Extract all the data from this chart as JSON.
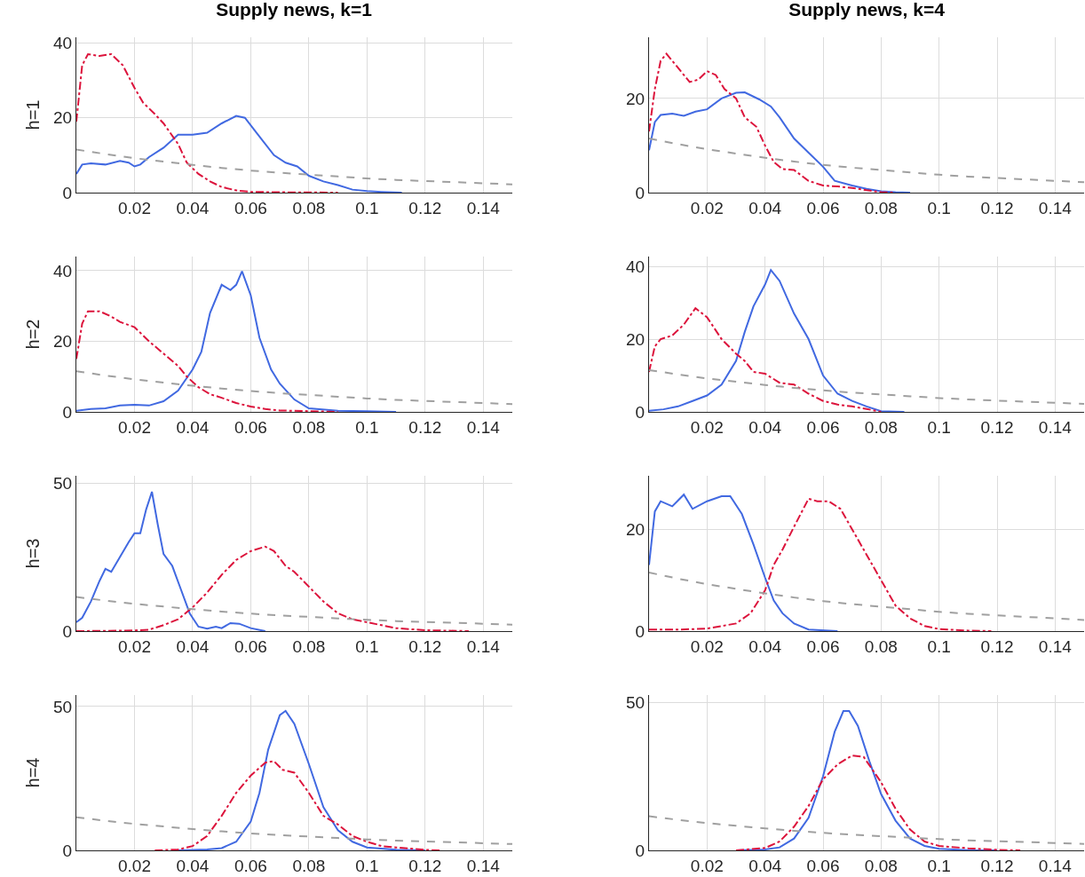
{
  "chart_data": [
    {
      "type": "line",
      "title": "Supply news, k=1",
      "ylabel": "h=1",
      "xlim": [
        0,
        0.15
      ],
      "xticks": [
        0.02,
        0.04,
        0.06,
        0.08,
        0.1,
        0.12,
        0.14
      ],
      "ylim": [
        0,
        41.5
      ],
      "yticks": [
        0,
        20,
        40
      ],
      "grid": true,
      "series": [
        {
          "color": "#4169e1",
          "line_style": "solid",
          "x": [
            0,
            0.002,
            0.005,
            0.01,
            0.015,
            0.018,
            0.02,
            0.022,
            0.025,
            0.03,
            0.035,
            0.04,
            0.045,
            0.05,
            0.055,
            0.058,
            0.062,
            0.068,
            0.072,
            0.076,
            0.08,
            0.085,
            0.09,
            0.095,
            0.1,
            0.105,
            0.112
          ],
          "values": [
            5,
            7.5,
            7.8,
            7.5,
            8.5,
            8,
            7,
            7.5,
            9.5,
            12,
            15.5,
            15.5,
            16,
            18.5,
            20.5,
            20,
            16,
            10,
            8,
            7,
            4.5,
            3,
            2,
            0.8,
            0.4,
            0.2,
            0
          ]
        },
        {
          "color": "#dc143c",
          "line_style": "dashdot",
          "x": [
            0,
            0.002,
            0.004,
            0.008,
            0.012,
            0.016,
            0.02,
            0.023,
            0.027,
            0.03,
            0.035,
            0.038,
            0.042,
            0.046,
            0.05,
            0.055,
            0.06,
            0.07,
            0.08,
            0.09
          ],
          "values": [
            19,
            34,
            37,
            36.5,
            37,
            34,
            28,
            24,
            21,
            18.5,
            13,
            8,
            5,
            3,
            1.5,
            0.6,
            0.2,
            0.1,
            0.05,
            0
          ]
        },
        {
          "color": "#a0a0a0",
          "line_style": "dashed",
          "x": [
            0,
            0.01,
            0.02,
            0.03,
            0.04,
            0.05,
            0.06,
            0.07,
            0.08,
            0.09,
            0.1,
            0.11,
            0.12,
            0.13,
            0.14,
            0.15
          ],
          "values": [
            11.5,
            10.3,
            9.2,
            8.3,
            7.4,
            6.6,
            5.9,
            5.3,
            4.8,
            4.3,
            3.8,
            3.4,
            3.1,
            2.8,
            2.5,
            2.2
          ]
        }
      ]
    },
    {
      "type": "line",
      "title": "Supply news, k=4",
      "xlim": [
        0,
        0.15
      ],
      "xticks": [
        0.02,
        0.04,
        0.06,
        0.08,
        0.1,
        0.12,
        0.14
      ],
      "ylim": [
        0,
        33
      ],
      "yticks": [
        0,
        20
      ],
      "grid": true,
      "series": [
        {
          "color": "#4169e1",
          "line_style": "solid",
          "x": [
            0,
            0.002,
            0.004,
            0.008,
            0.012,
            0.016,
            0.02,
            0.025,
            0.03,
            0.033,
            0.038,
            0.042,
            0.045,
            0.05,
            0.055,
            0.06,
            0.064,
            0.07,
            0.075,
            0.08,
            0.085,
            0.09
          ],
          "values": [
            9,
            15,
            16.5,
            16.8,
            16.3,
            17.2,
            17.7,
            20,
            21.2,
            21.3,
            19.8,
            18.3,
            16,
            11.5,
            8.5,
            5.5,
            2.5,
            1.5,
            0.8,
            0.3,
            0.1,
            0
          ]
        },
        {
          "color": "#dc143c",
          "line_style": "dashdot",
          "x": [
            0,
            0.002,
            0.004,
            0.006,
            0.01,
            0.014,
            0.017,
            0.02,
            0.023,
            0.026,
            0.03,
            0.033,
            0.037,
            0.04,
            0.043,
            0.046,
            0.05,
            0.055,
            0.06,
            0.065,
            0.07,
            0.075,
            0.08,
            0.085
          ],
          "values": [
            13,
            22,
            28,
            29.5,
            26.5,
            23.5,
            24,
            25.8,
            25,
            22,
            20,
            16,
            14,
            10,
            6.5,
            5,
            4.8,
            2.5,
            1.5,
            1.3,
            1,
            0.5,
            0.1,
            0
          ]
        },
        {
          "color": "#a0a0a0",
          "line_style": "dashed",
          "x": [
            0,
            0.01,
            0.02,
            0.03,
            0.04,
            0.05,
            0.06,
            0.07,
            0.08,
            0.09,
            0.1,
            0.11,
            0.12,
            0.13,
            0.14,
            0.15
          ],
          "values": [
            11.5,
            10.3,
            9.2,
            8.3,
            7.4,
            6.6,
            5.9,
            5.3,
            4.8,
            4.3,
            3.8,
            3.4,
            3.1,
            2.8,
            2.5,
            2.2
          ]
        }
      ]
    },
    {
      "type": "line",
      "ylabel": "h=2",
      "xlim": [
        0,
        0.15
      ],
      "xticks": [
        0.02,
        0.04,
        0.06,
        0.08,
        0.1,
        0.12,
        0.14
      ],
      "ylim": [
        0,
        44
      ],
      "yticks": [
        0,
        20,
        40
      ],
      "grid": true,
      "series": [
        {
          "color": "#4169e1",
          "line_style": "solid",
          "x": [
            0,
            0.005,
            0.01,
            0.015,
            0.02,
            0.025,
            0.03,
            0.035,
            0.04,
            0.043,
            0.046,
            0.05,
            0.053,
            0.055,
            0.057,
            0.06,
            0.063,
            0.067,
            0.07,
            0.075,
            0.08,
            0.09,
            0.1,
            0.11
          ],
          "values": [
            0.3,
            0.8,
            1,
            1.8,
            2,
            1.8,
            3,
            6,
            12,
            17,
            28,
            36,
            34.5,
            36,
            39.8,
            33,
            21,
            12,
            8,
            3.5,
            1,
            0.3,
            0.2,
            0
          ]
        },
        {
          "color": "#dc143c",
          "line_style": "dashdot",
          "x": [
            0,
            0.002,
            0.004,
            0.008,
            0.012,
            0.015,
            0.02,
            0.025,
            0.03,
            0.035,
            0.038,
            0.042,
            0.046,
            0.05,
            0.055,
            0.06,
            0.065,
            0.07,
            0.08,
            0.09
          ],
          "values": [
            15,
            25,
            28.5,
            28.5,
            27,
            25.5,
            24,
            20,
            16.5,
            13,
            10,
            7,
            5,
            4,
            2.5,
            1.5,
            0.8,
            0.4,
            0.2,
            0
          ]
        },
        {
          "color": "#a0a0a0",
          "line_style": "dashed",
          "x": [
            0,
            0.01,
            0.02,
            0.03,
            0.04,
            0.05,
            0.06,
            0.07,
            0.08,
            0.09,
            0.1,
            0.11,
            0.12,
            0.13,
            0.14,
            0.15
          ],
          "values": [
            11.5,
            10.3,
            9.2,
            8.3,
            7.4,
            6.6,
            5.9,
            5.3,
            4.8,
            4.3,
            3.8,
            3.4,
            3.1,
            2.8,
            2.5,
            2.2
          ]
        }
      ]
    },
    {
      "type": "line",
      "xlim": [
        0,
        0.15
      ],
      "xticks": [
        0.02,
        0.04,
        0.06,
        0.08,
        0.1,
        0.12,
        0.14
      ],
      "ylim": [
        0,
        42.7
      ],
      "yticks": [
        0,
        20,
        40
      ],
      "grid": true,
      "series": [
        {
          "color": "#4169e1",
          "line_style": "solid",
          "x": [
            0,
            0.005,
            0.01,
            0.015,
            0.02,
            0.025,
            0.03,
            0.033,
            0.036,
            0.04,
            0.042,
            0.045,
            0.05,
            0.055,
            0.06,
            0.065,
            0.07,
            0.075,
            0.08,
            0.088
          ],
          "values": [
            0.3,
            0.7,
            1.5,
            3,
            4.5,
            7.5,
            14,
            22,
            29,
            35,
            39,
            36,
            27,
            20,
            10,
            5,
            3,
            1.5,
            0.2,
            0
          ]
        },
        {
          "color": "#dc143c",
          "line_style": "dashdot",
          "x": [
            0,
            0.002,
            0.004,
            0.008,
            0.012,
            0.016,
            0.02,
            0.025,
            0.03,
            0.033,
            0.036,
            0.04,
            0.045,
            0.05,
            0.055,
            0.06,
            0.065,
            0.07,
            0.075,
            0.08
          ],
          "values": [
            11,
            18,
            20,
            21,
            24,
            28.5,
            26,
            20,
            16,
            14,
            11,
            10.5,
            8,
            7.5,
            5,
            3,
            2,
            1.5,
            0.8,
            0
          ]
        },
        {
          "color": "#a0a0a0",
          "line_style": "dashed",
          "x": [
            0,
            0.01,
            0.02,
            0.03,
            0.04,
            0.05,
            0.06,
            0.07,
            0.08,
            0.09,
            0.1,
            0.11,
            0.12,
            0.13,
            0.14,
            0.15
          ],
          "values": [
            11.5,
            10.3,
            9.2,
            8.3,
            7.4,
            6.6,
            5.9,
            5.3,
            4.8,
            4.3,
            3.8,
            3.4,
            3.1,
            2.8,
            2.5,
            2.2
          ]
        }
      ]
    },
    {
      "type": "line",
      "ylabel": "h=3",
      "xlim": [
        0,
        0.15
      ],
      "xticks": [
        0.02,
        0.04,
        0.06,
        0.08,
        0.1,
        0.12,
        0.14
      ],
      "ylim": [
        0,
        52.4
      ],
      "yticks": [
        0,
        50
      ],
      "grid": true,
      "series": [
        {
          "color": "#4169e1",
          "line_style": "solid",
          "x": [
            0,
            0.002,
            0.005,
            0.008,
            0.01,
            0.012,
            0.015,
            0.018,
            0.02,
            0.022,
            0.024,
            0.026,
            0.028,
            0.03,
            0.033,
            0.036,
            0.039,
            0.042,
            0.045,
            0.048,
            0.05,
            0.053,
            0.056,
            0.06,
            0.065
          ],
          "values": [
            3,
            4.5,
            10,
            17,
            21,
            20,
            25,
            30,
            33,
            33,
            41,
            47,
            36,
            26,
            22,
            14,
            6,
            1.5,
            0.8,
            1.5,
            1,
            2.7,
            2.5,
            1,
            0
          ]
        },
        {
          "color": "#dc143c",
          "line_style": "dashdot",
          "x": [
            0,
            0.02,
            0.025,
            0.03,
            0.035,
            0.04,
            0.045,
            0.05,
            0.055,
            0.06,
            0.065,
            0.068,
            0.072,
            0.075,
            0.08,
            0.085,
            0.09,
            0.095,
            0.1,
            0.105,
            0.11,
            0.12,
            0.135
          ],
          "values": [
            0,
            0.2,
            0.5,
            2,
            4,
            8,
            13,
            19,
            24,
            27,
            28.5,
            27,
            22,
            20,
            15,
            10,
            6,
            4,
            3,
            2,
            1,
            0.3,
            0
          ]
        },
        {
          "color": "#a0a0a0",
          "line_style": "dashed",
          "x": [
            0,
            0.01,
            0.02,
            0.03,
            0.04,
            0.05,
            0.06,
            0.07,
            0.08,
            0.09,
            0.1,
            0.11,
            0.12,
            0.13,
            0.14,
            0.15
          ],
          "values": [
            11.5,
            10.3,
            9.2,
            8.3,
            7.4,
            6.6,
            5.9,
            5.3,
            4.8,
            4.3,
            3.8,
            3.4,
            3.1,
            2.8,
            2.5,
            2.2
          ]
        }
      ]
    },
    {
      "type": "line",
      "xlim": [
        0,
        0.15
      ],
      "xticks": [
        0.02,
        0.04,
        0.06,
        0.08,
        0.1,
        0.12,
        0.14
      ],
      "ylim": [
        0,
        30.5
      ],
      "yticks": [
        0,
        20
      ],
      "grid": true,
      "series": [
        {
          "color": "#4169e1",
          "line_style": "solid",
          "x": [
            0,
            0.002,
            0.004,
            0.008,
            0.012,
            0.015,
            0.02,
            0.025,
            0.028,
            0.032,
            0.036,
            0.04,
            0.043,
            0.046,
            0.05,
            0.055,
            0.065
          ],
          "values": [
            13,
            23.5,
            25.5,
            24.5,
            26.8,
            24,
            25.5,
            26.5,
            26.5,
            23,
            17,
            10.5,
            6,
            3.5,
            1.5,
            0.3,
            0
          ]
        },
        {
          "color": "#dc143c",
          "line_style": "dashdot",
          "x": [
            0,
            0.01,
            0.02,
            0.03,
            0.035,
            0.04,
            0.043,
            0.046,
            0.05,
            0.055,
            0.058,
            0.062,
            0.066,
            0.07,
            0.075,
            0.08,
            0.085,
            0.09,
            0.095,
            0.1,
            0.11,
            0.118
          ],
          "values": [
            0.3,
            0.3,
            0.5,
            1.5,
            3.5,
            8,
            13,
            16,
            20.5,
            26,
            25.5,
            25.5,
            24,
            20,
            15,
            10,
            5,
            2.5,
            1,
            0.4,
            0.1,
            0
          ]
        },
        {
          "color": "#a0a0a0",
          "line_style": "dashed",
          "x": [
            0,
            0.01,
            0.02,
            0.03,
            0.04,
            0.05,
            0.06,
            0.07,
            0.08,
            0.09,
            0.1,
            0.11,
            0.12,
            0.13,
            0.14,
            0.15
          ],
          "values": [
            11.5,
            10.3,
            9.2,
            8.3,
            7.4,
            6.6,
            5.9,
            5.3,
            4.8,
            4.3,
            3.8,
            3.4,
            3.1,
            2.8,
            2.5,
            2.2
          ]
        }
      ]
    },
    {
      "type": "line",
      "ylabel": "h=4",
      "xlim": [
        0,
        0.15
      ],
      "xticks": [
        0.02,
        0.04,
        0.06,
        0.08,
        0.1,
        0.12,
        0.14
      ],
      "ylim": [
        0,
        54
      ],
      "yticks": [
        0,
        50
      ],
      "grid": true,
      "series": [
        {
          "color": "#4169e1",
          "line_style": "solid",
          "x": [
            0.035,
            0.045,
            0.05,
            0.055,
            0.06,
            0.063,
            0.066,
            0.07,
            0.072,
            0.075,
            0.08,
            0.085,
            0.09,
            0.095,
            0.1,
            0.11,
            0.12
          ],
          "values": [
            0,
            0.3,
            0.8,
            3,
            10,
            20,
            35,
            47,
            48.5,
            44,
            30,
            15,
            7,
            3,
            1,
            0.2,
            0
          ]
        },
        {
          "color": "#dc143c",
          "line_style": "dashdot",
          "x": [
            0.027,
            0.035,
            0.04,
            0.045,
            0.05,
            0.055,
            0.06,
            0.065,
            0.068,
            0.071,
            0.075,
            0.08,
            0.085,
            0.09,
            0.095,
            0.1,
            0.105,
            0.11,
            0.12,
            0.125
          ],
          "values": [
            0,
            0.3,
            1.5,
            5,
            12,
            20,
            26,
            30.5,
            31,
            28,
            27,
            20,
            12,
            9,
            5,
            3,
            1.5,
            1,
            0.2,
            0
          ]
        },
        {
          "color": "#a0a0a0",
          "line_style": "dashed",
          "x": [
            0,
            0.01,
            0.02,
            0.03,
            0.04,
            0.05,
            0.06,
            0.07,
            0.08,
            0.09,
            0.1,
            0.11,
            0.12,
            0.13,
            0.14,
            0.15
          ],
          "values": [
            11.5,
            10.3,
            9.2,
            8.3,
            7.4,
            6.6,
            5.9,
            5.3,
            4.8,
            4.3,
            3.8,
            3.4,
            3.1,
            2.8,
            2.5,
            2.2
          ]
        }
      ]
    },
    {
      "type": "line",
      "xlim": [
        0,
        0.15
      ],
      "xticks": [
        0.02,
        0.04,
        0.06,
        0.08,
        0.1,
        0.12,
        0.14
      ],
      "ylim": [
        0,
        52.4
      ],
      "yticks": [
        0,
        50
      ],
      "grid": true,
      "series": [
        {
          "color": "#4169e1",
          "line_style": "solid",
          "x": [
            0.03,
            0.04,
            0.045,
            0.05,
            0.055,
            0.06,
            0.064,
            0.067,
            0.069,
            0.072,
            0.076,
            0.08,
            0.085,
            0.09,
            0.095,
            0.1,
            0.11,
            0.12
          ],
          "values": [
            0,
            0.3,
            1,
            4,
            11,
            25,
            40,
            47,
            47,
            42,
            30,
            19,
            10,
            4,
            1.5,
            0.5,
            0.1,
            0
          ]
        },
        {
          "color": "#dc143c",
          "line_style": "dashdot",
          "x": [
            0.03,
            0.04,
            0.045,
            0.05,
            0.055,
            0.06,
            0.065,
            0.07,
            0.074,
            0.08,
            0.085,
            0.09,
            0.095,
            0.1,
            0.11,
            0.12,
            0.128
          ],
          "values": [
            0,
            0.8,
            3,
            8,
            15,
            24,
            29,
            32,
            31.5,
            23,
            14,
            7,
            3,
            1.5,
            0.7,
            0.2,
            0
          ]
        },
        {
          "color": "#a0a0a0",
          "line_style": "dashed",
          "x": [
            0,
            0.01,
            0.02,
            0.03,
            0.04,
            0.05,
            0.06,
            0.07,
            0.08,
            0.09,
            0.1,
            0.11,
            0.12,
            0.13,
            0.14,
            0.15
          ],
          "values": [
            11.5,
            10.3,
            9.2,
            8.3,
            7.4,
            6.6,
            5.9,
            5.3,
            4.8,
            4.3,
            3.8,
            3.4,
            3.1,
            2.8,
            2.5,
            2.2
          ]
        }
      ]
    }
  ]
}
